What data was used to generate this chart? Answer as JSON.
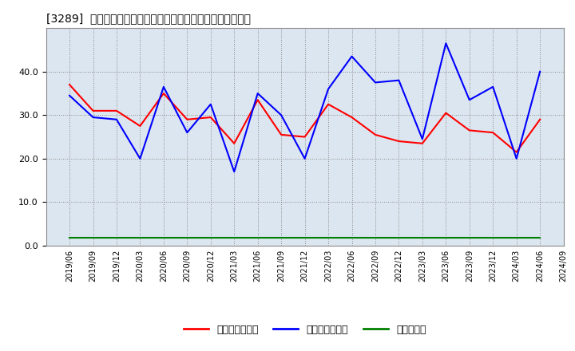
{
  "title": "[3289]  売上債権回転率、買入債務回転率、在庫回転率の推移",
  "dates": [
    "2019/06",
    "2019/09",
    "2019/12",
    "2020/03",
    "2020/06",
    "2020/09",
    "2020/12",
    "2021/03",
    "2021/06",
    "2021/09",
    "2021/12",
    "2022/03",
    "2022/06",
    "2022/09",
    "2022/12",
    "2023/03",
    "2023/06",
    "2023/09",
    "2023/12",
    "2024/03",
    "2024/06",
    "2024/09"
  ],
  "売上債権回転率": [
    37.0,
    31.0,
    31.0,
    27.5,
    35.0,
    29.0,
    29.5,
    23.5,
    33.5,
    25.5,
    25.0,
    32.5,
    29.5,
    25.5,
    24.0,
    23.5,
    30.5,
    26.5,
    26.0,
    21.5,
    29.0,
    null
  ],
  "買入債務回転率": [
    34.5,
    29.5,
    29.0,
    20.0,
    36.5,
    26.0,
    32.5,
    17.0,
    35.0,
    30.0,
    20.0,
    36.0,
    43.5,
    37.5,
    38.0,
    24.5,
    46.5,
    33.5,
    36.5,
    20.0,
    40.0,
    null
  ],
  "在庫回転率": [
    1.8,
    1.8,
    1.8,
    1.8,
    1.8,
    1.8,
    1.8,
    1.8,
    1.8,
    1.8,
    1.8,
    1.8,
    1.8,
    1.8,
    1.8,
    1.8,
    1.8,
    1.8,
    1.8,
    1.8,
    1.8,
    null
  ],
  "colors": {
    "売上債権回転率": "#ff0000",
    "買入債務回転率": "#0000ff",
    "在庫回転率": "#008000"
  },
  "ylim": [
    0.0,
    50.0
  ],
  "yticks": [
    0.0,
    10.0,
    20.0,
    30.0,
    40.0
  ],
  "background_color": "#ffffff",
  "plot_bg_color": "#dce6f0",
  "grid_color": "#aaaaaa",
  "legend_labels": [
    "売上債権回転率",
    "買入債務回転率",
    "在庫回転率"
  ]
}
